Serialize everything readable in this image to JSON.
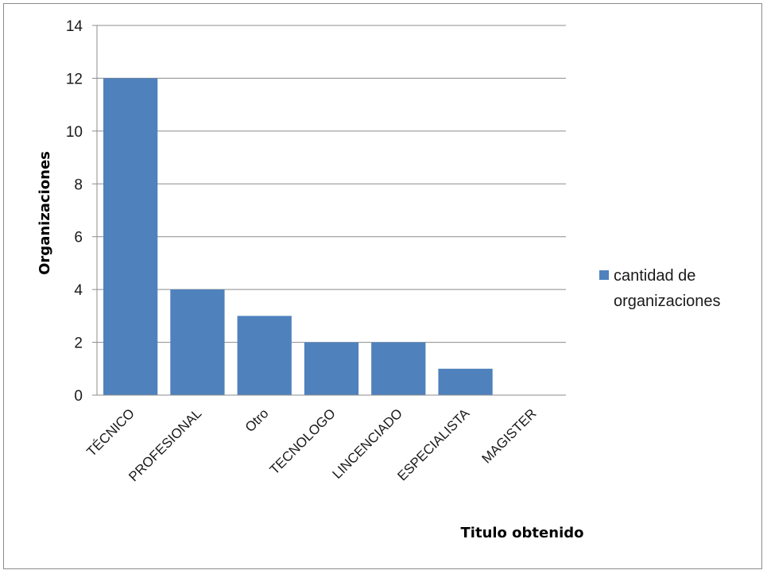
{
  "chart_data": {
    "type": "bar",
    "categories": [
      "TÉCNICO",
      "PROFESIONAL",
      "Otro",
      "TECNOLOGO",
      "LINCENCIADO",
      "ESPECIALISTA",
      "MAGISTER"
    ],
    "series": [
      {
        "name": "cantidad de organizaciones",
        "values": [
          12,
          4,
          3,
          2,
          2,
          1,
          0
        ]
      }
    ],
    "legend_lines": [
      "cantidad de",
      "organizaciones"
    ],
    "xlabel": "Titulo obtenido",
    "ylabel": "Organizaciones",
    "ylim": [
      0,
      14
    ],
    "yticks": [
      0,
      2,
      4,
      6,
      8,
      10,
      12,
      14
    ],
    "grid": true,
    "legend_position": "right",
    "colors": {
      "bar": "#4f81bd",
      "grid": "#8c8c8c",
      "axis": "#8c8c8c"
    }
  }
}
